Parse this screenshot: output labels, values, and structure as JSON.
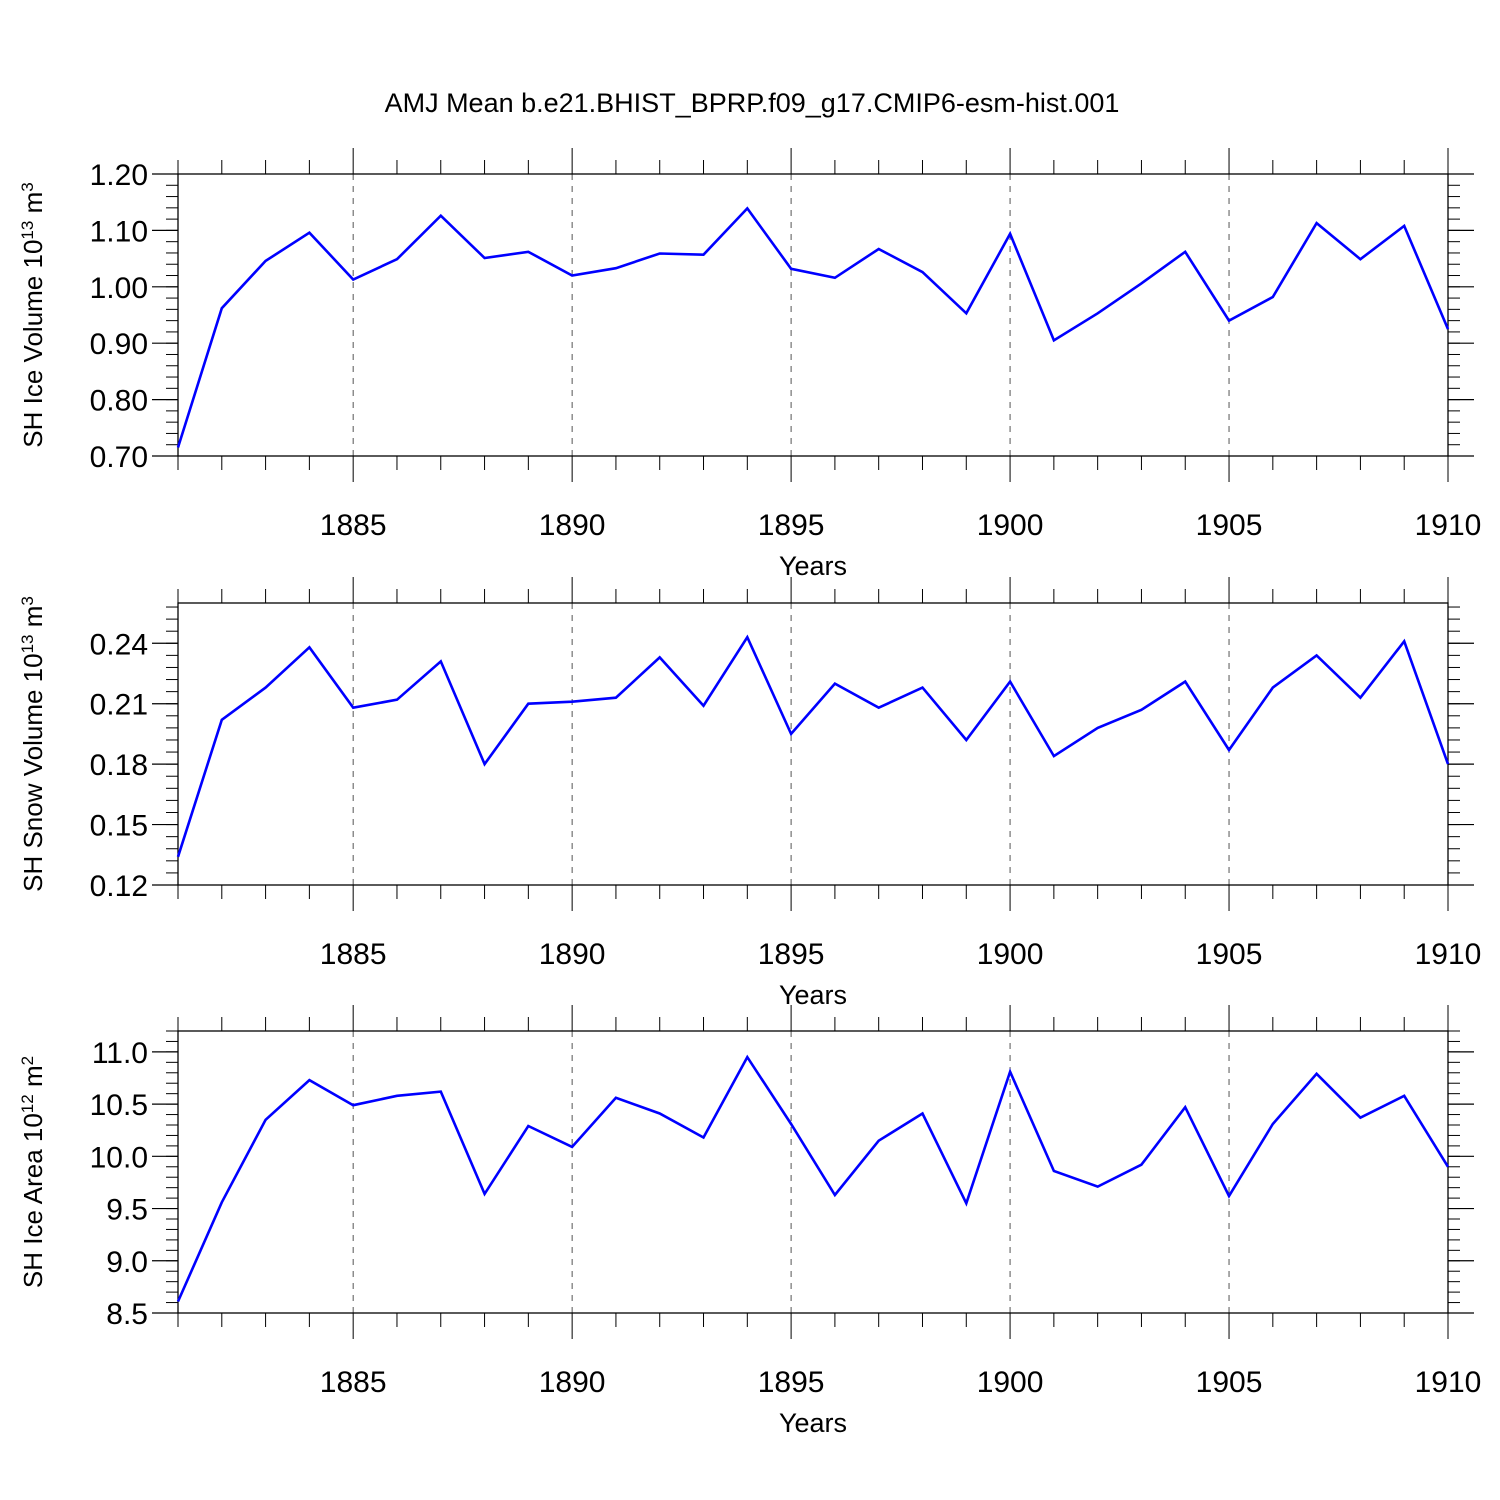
{
  "figure": {
    "title": "AMJ Mean b.e21.BHIST_BPRP.f09_g17.CMIP6-esm-hist.001",
    "line_color": "#0000ff"
  },
  "chart_data": [
    {
      "type": "line",
      "title": "",
      "xlabel": "Years",
      "ylabel": {
        "prefix": "SH Ice Volume 10",
        "sup1": "13",
        "mid": " m",
        "sup2": "3"
      },
      "xlim": [
        1881,
        1910
      ],
      "ylim": [
        0.7,
        1.2
      ],
      "x_ticks": [
        1885,
        1890,
        1895,
        1900,
        1905,
        1910
      ],
      "y_ticks": [
        "0.70",
        "0.80",
        "0.90",
        "1.00",
        "1.10",
        "1.20"
      ],
      "y_tick_values": [
        0.7,
        0.8,
        0.9,
        1.0,
        1.1,
        1.2
      ],
      "y_minor_step": 0.02,
      "x_minor_step": 1,
      "grid": "x-dashed",
      "series": [
        {
          "x": [
            1881,
            1882,
            1883,
            1884,
            1885,
            1886,
            1887,
            1888,
            1889,
            1890,
            1891,
            1892,
            1893,
            1894,
            1895,
            1896,
            1897,
            1898,
            1899,
            1900,
            1901,
            1902,
            1903,
            1904,
            1905,
            1906,
            1907,
            1908,
            1909,
            1910
          ],
          "values": [
            0.715,
            0.962,
            1.046,
            1.096,
            1.013,
            1.049,
            1.126,
            1.051,
            1.062,
            1.02,
            1.033,
            1.059,
            1.057,
            1.139,
            1.032,
            1.016,
            1.067,
            1.026,
            0.953,
            1.094,
            0.905,
            0.953,
            1.006,
            1.062,
            0.94,
            0.982,
            1.113,
            1.049,
            1.108,
            0.925
          ]
        }
      ]
    },
    {
      "type": "line",
      "title": "",
      "xlabel": "Years",
      "ylabel": {
        "prefix": "SH Snow Volume 10",
        "sup1": "13",
        "mid": " m",
        "sup2": "3"
      },
      "xlim": [
        1881,
        1910
      ],
      "ylim": [
        0.12,
        0.26
      ],
      "x_ticks": [
        1885,
        1890,
        1895,
        1900,
        1905,
        1910
      ],
      "y_ticks": [
        "0.12",
        "0.15",
        "0.18",
        "0.21",
        "0.24"
      ],
      "y_tick_values": [
        0.12,
        0.15,
        0.18,
        0.21,
        0.24
      ],
      "y_minor_step": 0.006,
      "x_minor_step": 1,
      "grid": "x-dashed",
      "series": [
        {
          "x": [
            1881,
            1882,
            1883,
            1884,
            1885,
            1886,
            1887,
            1888,
            1889,
            1890,
            1891,
            1892,
            1893,
            1894,
            1895,
            1896,
            1897,
            1898,
            1899,
            1900,
            1901,
            1902,
            1903,
            1904,
            1905,
            1906,
            1907,
            1908,
            1909,
            1910
          ],
          "values": [
            0.134,
            0.202,
            0.218,
            0.238,
            0.208,
            0.212,
            0.231,
            0.18,
            0.21,
            0.211,
            0.213,
            0.233,
            0.209,
            0.243,
            0.195,
            0.22,
            0.208,
            0.218,
            0.192,
            0.221,
            0.184,
            0.198,
            0.207,
            0.221,
            0.187,
            0.218,
            0.234,
            0.213,
            0.241,
            0.18
          ]
        }
      ]
    },
    {
      "type": "line",
      "title": "",
      "xlabel": "Years",
      "ylabel": {
        "prefix": "SH Ice Area 10",
        "sup1": "12",
        "mid": " m",
        "sup2": "2"
      },
      "xlim": [
        1881,
        1910
      ],
      "ylim": [
        8.5,
        11.2
      ],
      "x_ticks": [
        1885,
        1890,
        1895,
        1900,
        1905,
        1910
      ],
      "y_ticks": [
        "8.5",
        "9.0",
        "9.5",
        "10.0",
        "10.5",
        "11.0"
      ],
      "y_tick_values": [
        8.5,
        9.0,
        9.5,
        10.0,
        10.5,
        11.0
      ],
      "y_minor_step": 0.1,
      "x_minor_step": 1,
      "grid": "x-dashed",
      "series": [
        {
          "x": [
            1881,
            1882,
            1883,
            1884,
            1885,
            1886,
            1887,
            1888,
            1889,
            1890,
            1891,
            1892,
            1893,
            1894,
            1895,
            1896,
            1897,
            1898,
            1899,
            1900,
            1901,
            1902,
            1903,
            1904,
            1905,
            1906,
            1907,
            1908,
            1909,
            1910
          ],
          "values": [
            8.61,
            9.56,
            10.35,
            10.73,
            10.49,
            10.58,
            10.62,
            9.64,
            10.29,
            10.09,
            10.56,
            10.41,
            10.18,
            10.95,
            10.31,
            9.63,
            10.15,
            10.41,
            9.55,
            10.81,
            9.86,
            9.71,
            9.92,
            10.47,
            9.62,
            10.31,
            10.79,
            10.37,
            10.58,
            9.9
          ]
        }
      ]
    }
  ]
}
